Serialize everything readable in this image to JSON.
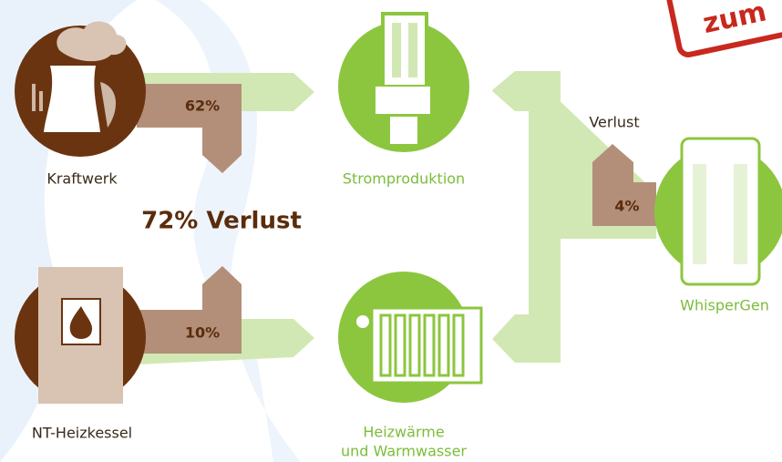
{
  "badge": "zum",
  "sources": [
    {
      "label": "Kraftwerk",
      "loss": "62%"
    },
    {
      "label": "NT-Heizkessel",
      "loss": "10%"
    }
  ],
  "total_loss": "72% Verlust",
  "outputs": [
    {
      "label_lines": [
        "Stromproduktion"
      ]
    },
    {
      "label_lines": [
        "Heizwärme",
        "und Warmwasser"
      ]
    }
  ],
  "chp": {
    "label": "WhisperGen",
    "loss_title": "Verlust",
    "loss": "4%"
  }
}
